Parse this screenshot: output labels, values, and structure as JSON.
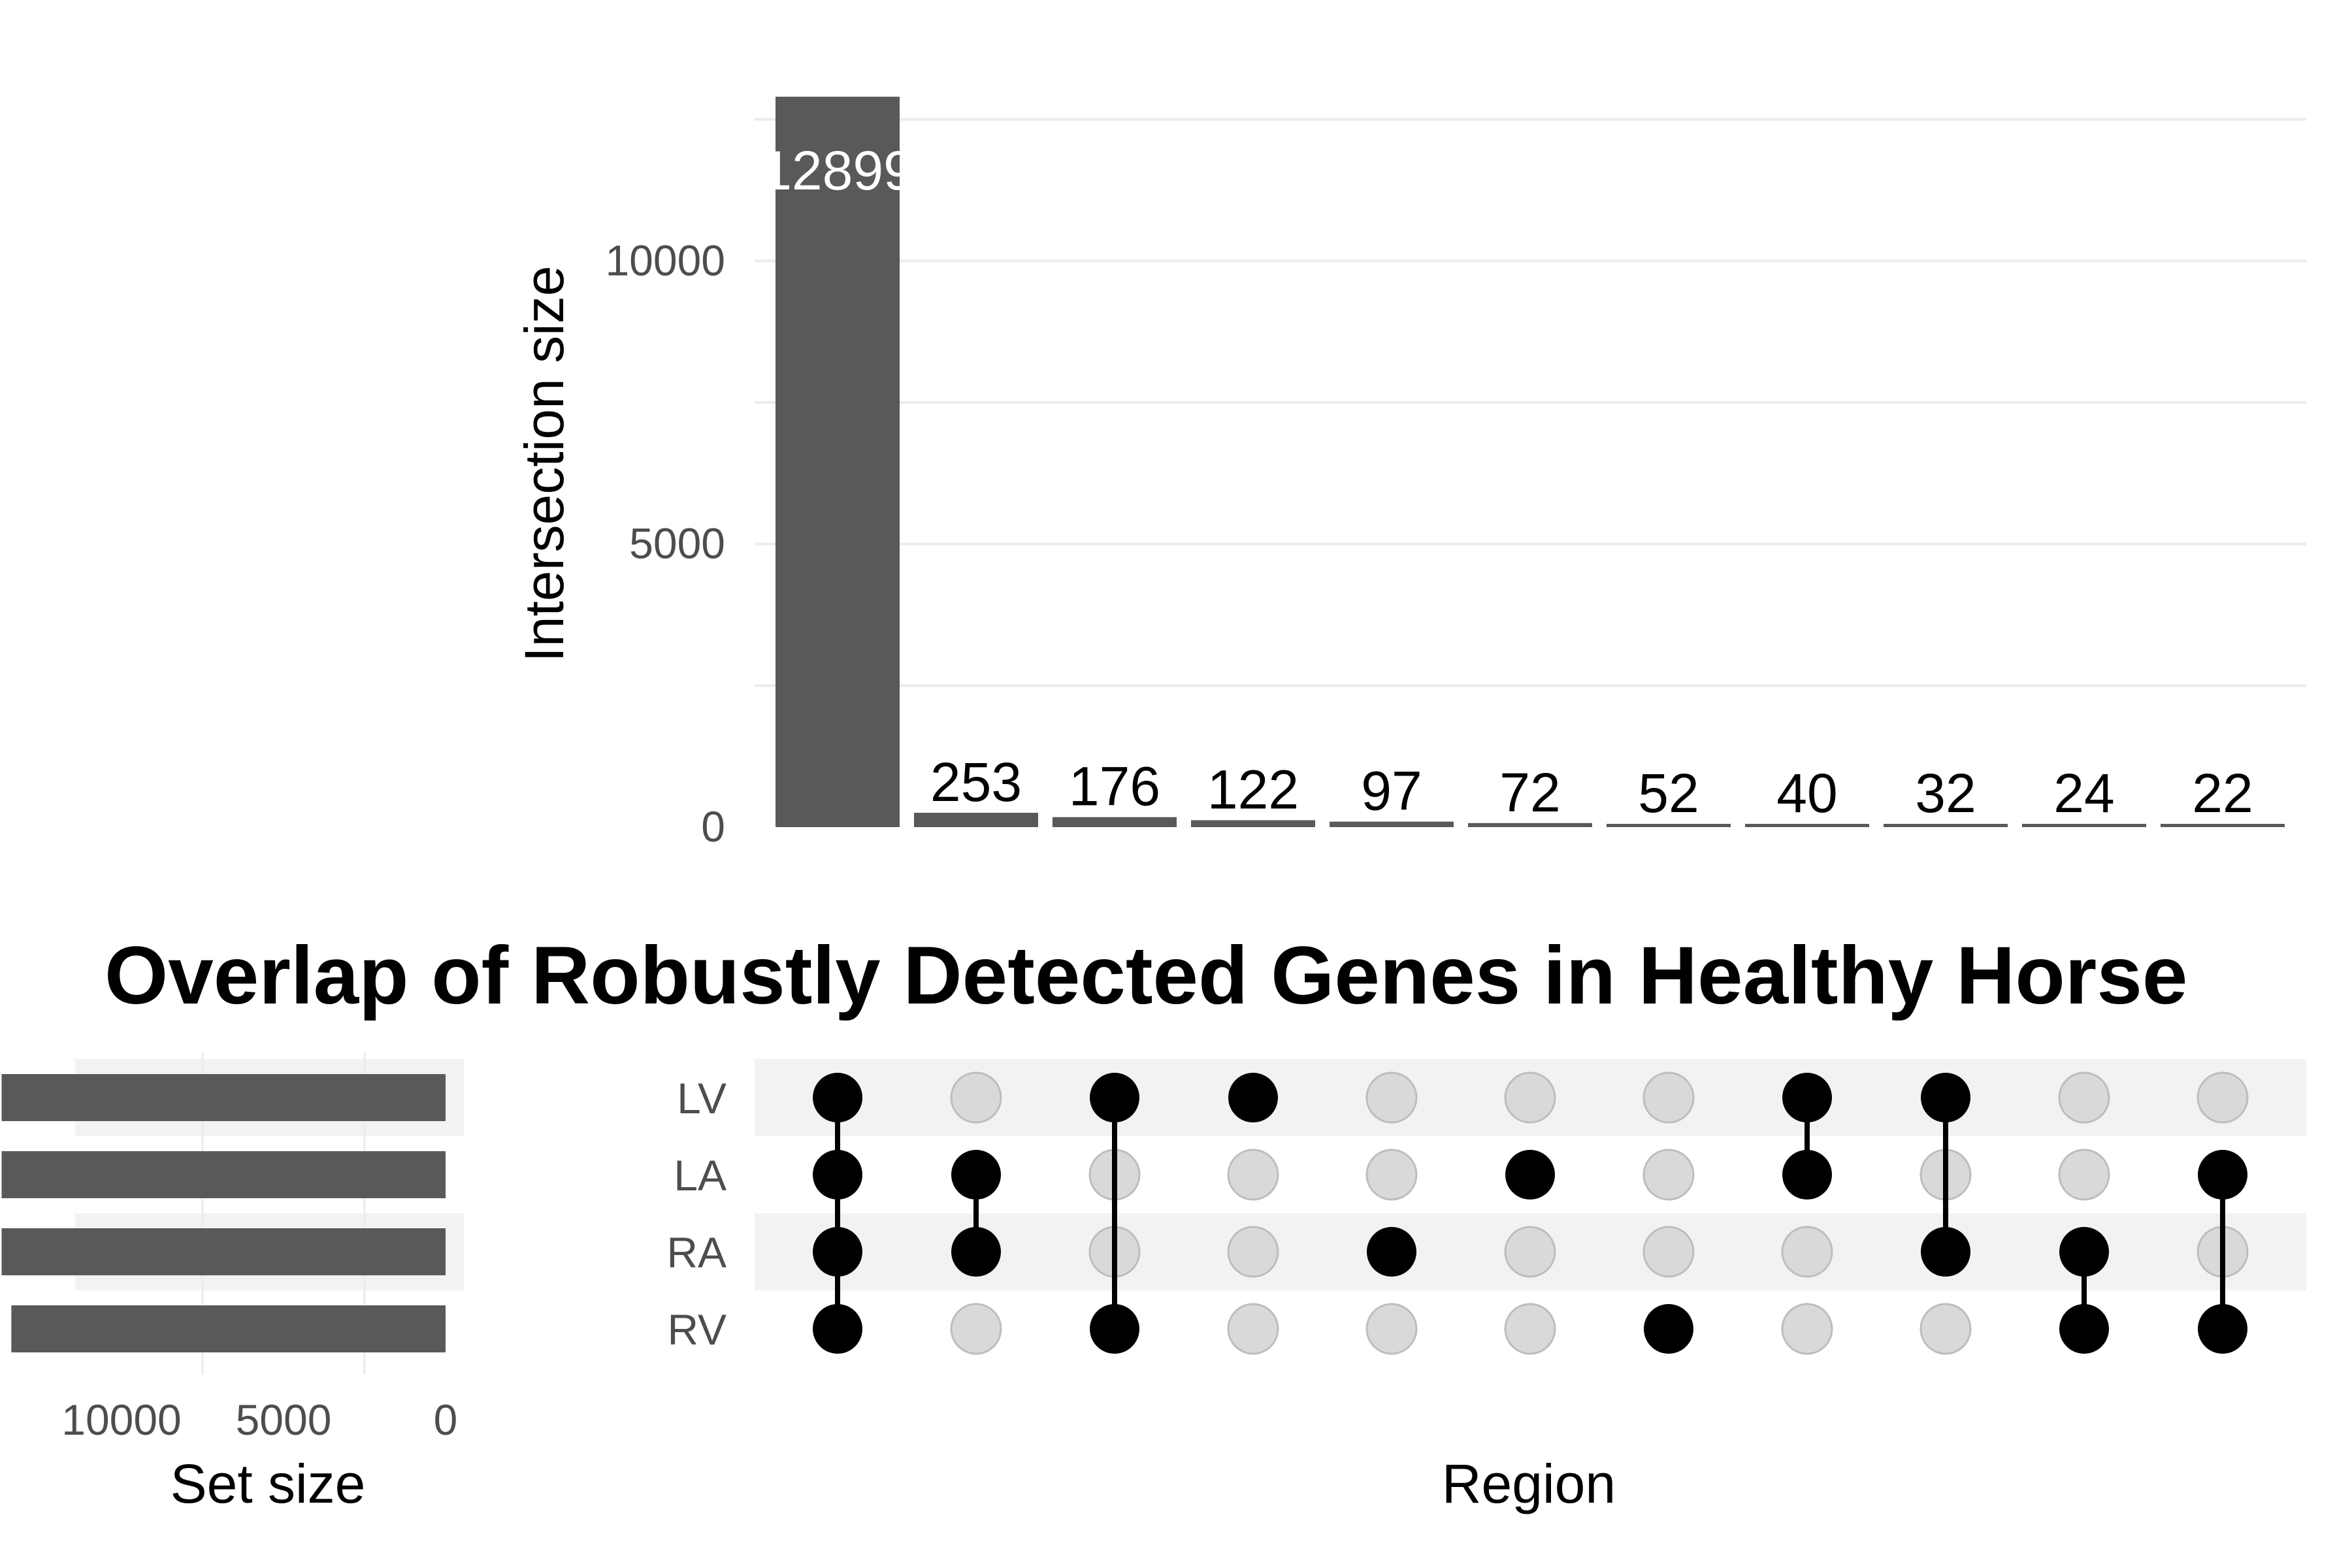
{
  "chart_data": {
    "type": "upset",
    "title": "Overlap of Robustly Detected Genes in Healthy Horse",
    "sets": [
      "LV",
      "LA",
      "RA",
      "RV"
    ],
    "set_sizes": [
      13700,
      13700,
      13700,
      13400
    ],
    "set_size_axis": {
      "label": "Set size",
      "ticks": [
        10000,
        5000,
        0
      ],
      "reversed": true
    },
    "intersection_axis": {
      "label": "Intersection size",
      "ticks": [
        0,
        5000,
        10000
      ],
      "ylim": [
        0,
        12899
      ],
      "grid": true
    },
    "matrix_axis_label": "Region",
    "intersections": [
      {
        "value": 12899,
        "label": "12899",
        "members": [
          "LV",
          "LA",
          "RA",
          "RV"
        ]
      },
      {
        "value": 253,
        "label": "253",
        "members": [
          "LA",
          "RA"
        ]
      },
      {
        "value": 176,
        "label": "176",
        "members": [
          "LV",
          "RV"
        ]
      },
      {
        "value": 122,
        "label": "122",
        "members": [
          "LV"
        ]
      },
      {
        "value": 97,
        "label": "97",
        "members": [
          "RA"
        ]
      },
      {
        "value": 72,
        "label": "72",
        "members": [
          "LA"
        ]
      },
      {
        "value": 52,
        "label": "52",
        "members": [
          "RV"
        ]
      },
      {
        "value": 40,
        "label": "40",
        "members": [
          "LV",
          "LA"
        ]
      },
      {
        "value": 32,
        "label": "32",
        "members": [
          "LV",
          "RA"
        ]
      },
      {
        "value": 24,
        "label": "24",
        "members": [
          "RA",
          "RV"
        ]
      },
      {
        "value": 22,
        "label": "22",
        "members": [
          "LA",
          "RV"
        ]
      }
    ],
    "colors": {
      "bar": "#595959",
      "dot_active": "#000000",
      "dot_inactive": "#d9d9d9",
      "stripe": "#f2f2f2",
      "grid": "#ebebeb"
    }
  }
}
